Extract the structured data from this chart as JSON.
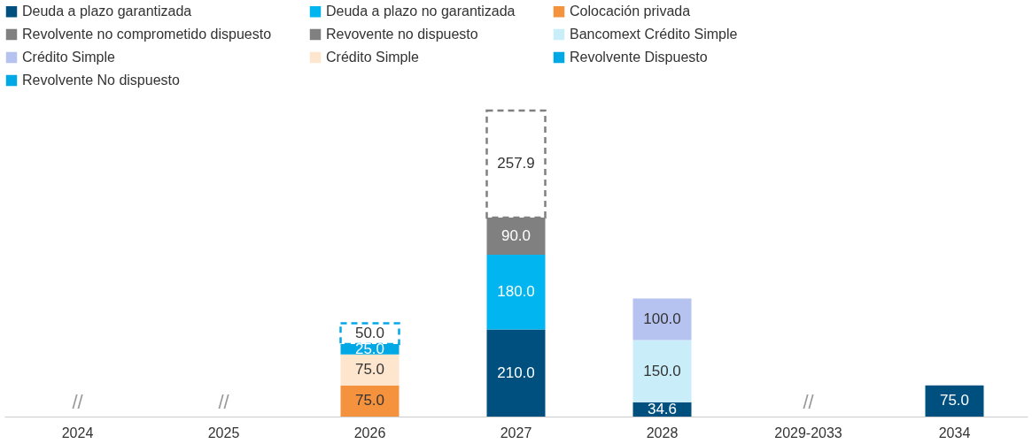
{
  "chart_data": {
    "type": "bar",
    "stacked": true,
    "legend": "top",
    "grid": false,
    "tick_labels": "x",
    "categories": [
      "2024",
      "2025",
      "2026",
      "2027",
      "2028",
      "2029-2033",
      "2034"
    ],
    "series": [
      {
        "name": "Deuda a plazo garantizada",
        "color": "#00507f",
        "values": [
          null,
          null,
          null,
          210.0,
          34.6,
          null,
          75.0
        ],
        "value_labels": [
          null,
          null,
          null,
          "210.0",
          "34.6",
          null,
          "75.0"
        ]
      },
      {
        "name": "Deuda a plazo no garantizada",
        "color": "#00b5f0",
        "values": [
          null,
          null,
          null,
          180.0,
          null,
          null,
          null
        ],
        "value_labels": [
          null,
          null,
          null,
          "180.0",
          null,
          null,
          null
        ]
      },
      {
        "name": "Colocación privada",
        "color": "#f5923e",
        "values": [
          null,
          null,
          75.0,
          null,
          null,
          null,
          null
        ],
        "value_labels": [
          null,
          null,
          "75.0",
          null,
          null,
          null,
          null
        ]
      },
      {
        "name": "Revolvente no comprometido dispuesto",
        "color": "#808080",
        "values": [
          null,
          null,
          null,
          90.0,
          null,
          null,
          null
        ],
        "value_labels": [
          null,
          null,
          null,
          "90.0",
          null,
          null,
          null
        ]
      },
      {
        "name": "Revovente no dispuesto",
        "color": "#808080",
        "line_style": "dashed",
        "values": [
          null,
          null,
          null,
          257.9,
          null,
          null,
          null
        ],
        "value_labels": [
          null,
          null,
          null,
          "257.9",
          null,
          null,
          null
        ]
      },
      {
        "name": "Bancomext Crédito Simple",
        "color": "#c9eefa",
        "values": [
          null,
          null,
          null,
          null,
          150.0,
          null,
          null
        ],
        "value_labels": [
          null,
          null,
          null,
          null,
          "150.0",
          null,
          null
        ]
      },
      {
        "name": "Crédito Simple",
        "color": "#b6c2f0",
        "values": [
          null,
          null,
          null,
          null,
          100.0,
          null,
          null
        ],
        "value_labels": [
          null,
          null,
          null,
          null,
          "100.0",
          null,
          null
        ]
      },
      {
        "name": "Crédito Simple",
        "color": "#fde6cd",
        "values": [
          null,
          null,
          75.0,
          null,
          null,
          null,
          null
        ],
        "value_labels": [
          null,
          null,
          "75.0",
          null,
          null,
          null,
          null
        ]
      },
      {
        "name": "Revolvente Dispuesto",
        "color": "#00a8e6",
        "values": [
          null,
          null,
          25.0,
          null,
          null,
          null,
          null
        ],
        "value_labels": [
          null,
          null,
          "25.0",
          null,
          null,
          null,
          null
        ]
      },
      {
        "name": "Revolvente No dispuesto",
        "color": "#00a8e6",
        "line_style": "dashed",
        "values": [
          null,
          null,
          50.0,
          null,
          null,
          null,
          null
        ],
        "value_labels": [
          null,
          null,
          "50.0",
          null,
          null,
          null,
          null
        ]
      }
    ],
    "annotations": [
      "//",
      "//",
      "//"
    ]
  }
}
